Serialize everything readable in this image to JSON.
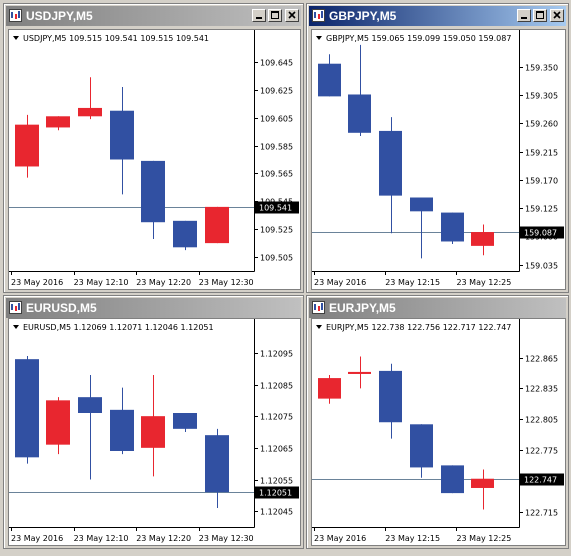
{
  "colors": {
    "bull": "#e8262f",
    "bear": "#3150a2",
    "grid": "#000000",
    "price_line": "#6a8399"
  },
  "windows": [
    {
      "id": "usdjpy",
      "title": "USDJPY,M5",
      "header": "USDJPY,M5  109.515 109.541 109.515 109.541",
      "active": false,
      "chart_data": {
        "type": "candlestick",
        "symbol": "USDJPY",
        "timeframe": "M5",
        "ylim": [
          109.495,
          109.655
        ],
        "yticks": [
          "109.645",
          "109.625",
          "109.605",
          "109.585",
          "109.565",
          "109.545",
          "109.525",
          "109.505"
        ],
        "current_price": "109.541",
        "current_price_value": 109.541,
        "xticks": [
          "23 May 2016",
          "23 May 12:10",
          "23 May 12:20",
          "23 May 12:30"
        ],
        "candles": [
          {
            "o": 109.57,
            "h": 109.607,
            "l": 109.562,
            "c": 109.6
          },
          {
            "o": 109.598,
            "h": 109.606,
            "l": 109.596,
            "c": 109.606
          },
          {
            "o": 109.606,
            "h": 109.634,
            "l": 109.604,
            "c": 109.612
          },
          {
            "o": 109.61,
            "h": 109.627,
            "l": 109.55,
            "c": 109.575
          },
          {
            "o": 109.574,
            "h": 109.574,
            "l": 109.518,
            "c": 109.53
          },
          {
            "o": 109.531,
            "h": 109.531,
            "l": 109.51,
            "c": 109.512
          },
          {
            "o": 109.515,
            "h": 109.541,
            "l": 109.515,
            "c": 109.541
          }
        ]
      }
    },
    {
      "id": "gbpjpy",
      "title": "GBPJPY,M5",
      "header": "GBPJPY,M5  159.065 159.099 159.050 159.087",
      "active": true,
      "chart_data": {
        "type": "candlestick",
        "symbol": "GBPJPY",
        "timeframe": "M5",
        "ylim": [
          159.025,
          159.38
        ],
        "yticks": [
          "159.350",
          "159.305",
          "159.260",
          "159.215",
          "159.170",
          "159.125",
          "159.080",
          "159.035"
        ],
        "current_price": "159.087",
        "current_price_value": 159.087,
        "xticks": [
          "23 May 2016",
          "23 May 12:15",
          "23 May 12:25"
        ],
        "candles": [
          {
            "o": 159.355,
            "h": 159.37,
            "l": 159.303,
            "c": 159.303
          },
          {
            "o": 159.306,
            "h": 159.385,
            "l": 159.24,
            "c": 159.245
          },
          {
            "o": 159.248,
            "h": 159.27,
            "l": 159.085,
            "c": 159.145
          },
          {
            "o": 159.142,
            "h": 159.142,
            "l": 159.045,
            "c": 159.12
          },
          {
            "o": 159.118,
            "h": 159.118,
            "l": 159.068,
            "c": 159.072
          },
          {
            "o": 159.065,
            "h": 159.099,
            "l": 159.05,
            "c": 159.087
          }
        ]
      }
    },
    {
      "id": "eurusd",
      "title": "EURUSD,M5",
      "header": "EURUSD,M5  1.12069 1.12071 1.12046 1.12051",
      "active": false,
      "chart_data": {
        "type": "candlestick",
        "symbol": "EURUSD",
        "timeframe": "M5",
        "ylim": [
          1.1204,
          1.121
        ],
        "yticks": [
          "1.12095",
          "1.12085",
          "1.12075",
          "1.12065",
          "1.12055",
          "1.12045"
        ],
        "current_price": "1.12051",
        "current_price_value": 1.12051,
        "xticks": [
          "23 May 2016",
          "23 May 12:10",
          "23 May 12:20",
          "23 May 12:30"
        ],
        "candles": [
          {
            "o": 1.12093,
            "h": 1.12094,
            "l": 1.1206,
            "c": 1.12062
          },
          {
            "o": 1.12066,
            "h": 1.12081,
            "l": 1.12063,
            "c": 1.1208
          },
          {
            "o": 1.12081,
            "h": 1.12088,
            "l": 1.12055,
            "c": 1.12076
          },
          {
            "o": 1.12077,
            "h": 1.12084,
            "l": 1.12063,
            "c": 1.12064
          },
          {
            "o": 1.12065,
            "h": 1.12088,
            "l": 1.12056,
            "c": 1.12075
          },
          {
            "o": 1.12076,
            "h": 1.12076,
            "l": 1.1207,
            "c": 1.12071
          },
          {
            "o": 1.12069,
            "h": 1.12071,
            "l": 1.12046,
            "c": 1.12051
          }
        ]
      }
    },
    {
      "id": "eurjpy",
      "title": "EURJPY,M5",
      "header": "EURJPY,M5  122.738 122.756 122.717 122.747",
      "active": false,
      "chart_data": {
        "type": "candlestick",
        "symbol": "EURJPY",
        "timeframe": "M5",
        "ylim": [
          122.7,
          122.885
        ],
        "yticks": [
          "122.865",
          "122.835",
          "122.805",
          "122.775",
          "122.745",
          "122.715"
        ],
        "current_price": "122.747",
        "current_price_value": 122.747,
        "xticks": [
          "23 May 2016",
          "23 May 12:15",
          "23 May 12:25"
        ],
        "candles": [
          {
            "o": 122.825,
            "h": 122.848,
            "l": 122.82,
            "c": 122.845
          },
          {
            "o": 122.849,
            "h": 122.866,
            "l": 122.835,
            "c": 122.851
          },
          {
            "o": 122.852,
            "h": 122.859,
            "l": 122.786,
            "c": 122.802
          },
          {
            "o": 122.8,
            "h": 122.8,
            "l": 122.748,
            "c": 122.758
          },
          {
            "o": 122.76,
            "h": 122.76,
            "l": 122.733,
            "c": 122.733
          },
          {
            "o": 122.738,
            "h": 122.756,
            "l": 122.717,
            "c": 122.747
          }
        ]
      }
    }
  ]
}
